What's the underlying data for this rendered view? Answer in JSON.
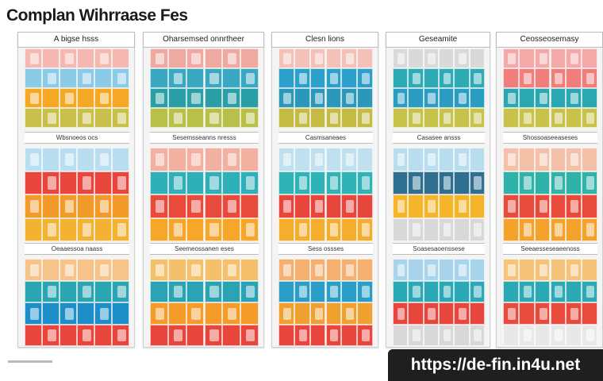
{
  "title": "Complan Wihrraase Fes",
  "columns": [
    {
      "header": "A bigse hsss",
      "sections": [
        "Wbsnoeos ocs",
        "Oeaaessoa naass"
      ]
    },
    {
      "header": "Oharsemsed onnrtheer",
      "sections": [
        "Sesemsseanns nresss",
        "Seemeossanen eses"
      ]
    },
    {
      "header": "Clesn lions",
      "sections": [
        "Casmsaneaes",
        "Sess ossses"
      ]
    },
    {
      "header": "Geseamite",
      "sections": [
        "Casasee ansss",
        "Soasesaoenssese"
      ]
    },
    {
      "header": "Ceosseosemasy",
      "sections": [
        "Shossoaseeaseses",
        "Seeaesseseaeenoss"
      ]
    }
  ],
  "url": "https://de-fin.in4u.net"
}
